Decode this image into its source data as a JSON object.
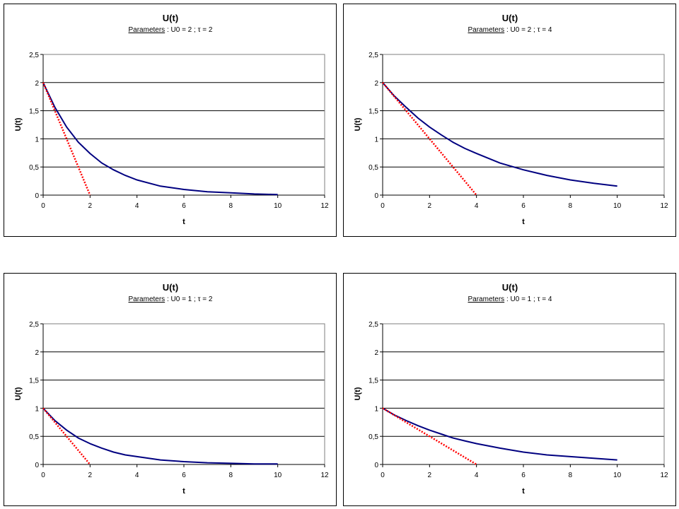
{
  "charts": [
    {
      "title": "U(t)",
      "params_label": "Parameters",
      "params_value": " : U0 = 2 ;  τ = 2",
      "xlabel": "t",
      "ylabel": "U(t)"
    },
    {
      "title": "U(t)",
      "params_label": "Parameters",
      "params_value": " : U0 = 2 ;  τ = 4",
      "xlabel": "t",
      "ylabel": "U(t)"
    },
    {
      "title": "U(t)",
      "params_label": "Parameters",
      "params_value": " : U0 = 1 ;  τ = 2",
      "xlabel": "t",
      "ylabel": "U(t)"
    },
    {
      "title": "U(t)",
      "params_label": "Parameters",
      "params_value": " : U0 = 1 ;  τ = 4",
      "xlabel": "t",
      "ylabel": "U(t)"
    }
  ],
  "chart_data": [
    {
      "type": "line",
      "title": "U(t)",
      "subtitle": "Parameters : U0 = 2 ;  τ = 2",
      "xlabel": "t",
      "ylabel": "U(t)",
      "xlim": [
        0,
        12
      ],
      "ylim": [
        0,
        2.5
      ],
      "x_ticks": [
        "0",
        "2",
        "4",
        "6",
        "8",
        "10",
        "12"
      ],
      "y_ticks": [
        "0",
        "0,5",
        "1",
        "1,5",
        "2",
        "2,5"
      ],
      "grid": "horizontal",
      "series": [
        {
          "color": "#000080",
          "style": "solid",
          "x": [
            0,
            0.5,
            1,
            1.5,
            2,
            2.5,
            3,
            3.5,
            4,
            5,
            6,
            7,
            8,
            9,
            10
          ],
          "y": [
            2,
            1.56,
            1.21,
            0.94,
            0.74,
            0.57,
            0.45,
            0.35,
            0.27,
            0.16,
            0.1,
            0.06,
            0.04,
            0.02,
            0.01
          ]
        },
        {
          "color": "#ff0000",
          "style": "dotted",
          "x": [
            0,
            2
          ],
          "y": [
            2,
            0
          ]
        }
      ]
    },
    {
      "type": "line",
      "title": "U(t)",
      "subtitle": "Parameters : U0 = 2 ;  τ = 4",
      "xlabel": "t",
      "ylabel": "U(t)",
      "xlim": [
        0,
        12
      ],
      "ylim": [
        0,
        2.5
      ],
      "x_ticks": [
        "0",
        "2",
        "4",
        "6",
        "8",
        "10",
        "12"
      ],
      "y_ticks": [
        "0",
        "0,5",
        "1",
        "1,5",
        "2",
        "2,5"
      ],
      "grid": "horizontal",
      "series": [
        {
          "color": "#000080",
          "style": "solid",
          "x": [
            0,
            0.5,
            1,
            1.5,
            2,
            2.5,
            3,
            3.5,
            4,
            5,
            6,
            7,
            8,
            9,
            10
          ],
          "y": [
            2,
            1.76,
            1.56,
            1.37,
            1.21,
            1.07,
            0.94,
            0.83,
            0.74,
            0.57,
            0.45,
            0.35,
            0.27,
            0.21,
            0.16
          ]
        },
        {
          "color": "#ff0000",
          "style": "dotted",
          "x": [
            0,
            4
          ],
          "y": [
            2,
            0
          ]
        }
      ]
    },
    {
      "type": "line",
      "title": "U(t)",
      "subtitle": "Parameters : U0 = 1 ;  τ = 2",
      "xlabel": "t",
      "ylabel": "U(t)",
      "xlim": [
        0,
        12
      ],
      "ylim": [
        0,
        2.5
      ],
      "x_ticks": [
        "0",
        "2",
        "4",
        "6",
        "8",
        "10",
        "12"
      ],
      "y_ticks": [
        "0",
        "0,5",
        "1",
        "1,5",
        "2",
        "2,5"
      ],
      "grid": "horizontal",
      "series": [
        {
          "color": "#000080",
          "style": "solid",
          "x": [
            0,
            0.5,
            1,
            1.5,
            2,
            2.5,
            3,
            3.5,
            4,
            5,
            6,
            7,
            8,
            9,
            10
          ],
          "y": [
            1,
            0.78,
            0.61,
            0.47,
            0.37,
            0.29,
            0.22,
            0.17,
            0.14,
            0.08,
            0.05,
            0.03,
            0.02,
            0.01,
            0.01
          ]
        },
        {
          "color": "#ff0000",
          "style": "dotted",
          "x": [
            0,
            2
          ],
          "y": [
            1,
            0
          ]
        }
      ]
    },
    {
      "type": "line",
      "title": "U(t)",
      "subtitle": "Parameters : U0 = 1 ;  τ = 4",
      "xlabel": "t",
      "ylabel": "U(t)",
      "xlim": [
        0,
        12
      ],
      "ylim": [
        0,
        2.5
      ],
      "x_ticks": [
        "0",
        "2",
        "4",
        "6",
        "8",
        "10",
        "12"
      ],
      "y_ticks": [
        "0",
        "0,5",
        "1",
        "1,5",
        "2",
        "2,5"
      ],
      "grid": "horizontal",
      "series": [
        {
          "color": "#000080",
          "style": "solid",
          "x": [
            0,
            0.5,
            1,
            1.5,
            2,
            2.5,
            3,
            3.5,
            4,
            5,
            6,
            7,
            8,
            9,
            10
          ],
          "y": [
            1,
            0.88,
            0.78,
            0.69,
            0.61,
            0.54,
            0.47,
            0.42,
            0.37,
            0.29,
            0.22,
            0.17,
            0.14,
            0.11,
            0.08
          ]
        },
        {
          "color": "#ff0000",
          "style": "dotted",
          "x": [
            0,
            4
          ],
          "y": [
            1,
            0
          ]
        }
      ]
    }
  ]
}
